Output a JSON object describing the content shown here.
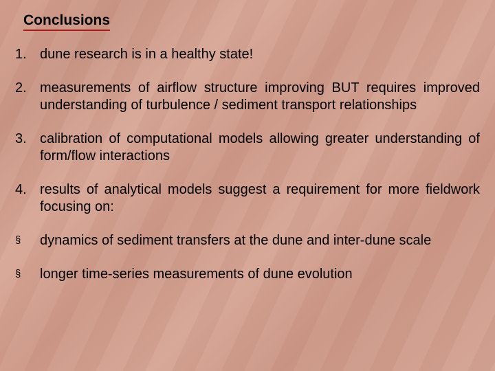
{
  "slide": {
    "heading": "Conclusions",
    "items": [
      {
        "marker": "1.",
        "text": "dune research is in a healthy state!",
        "align": "left"
      },
      {
        "marker": "2.",
        "text": "measurements of airflow structure improving BUT requires improved understanding of turbulence / sediment transport relationships",
        "align": "justify"
      },
      {
        "marker": "3.",
        "text": "calibration of computational models allowing greater understanding of form/flow interactions",
        "align": "justify"
      },
      {
        "marker": "4.",
        "text": "results of analytical models suggest a requirement for more fieldwork focusing on:",
        "align": "justify"
      },
      {
        "marker": "§",
        "text": "dynamics of sediment transfers at the dune and inter-dune scale",
        "align": "justify"
      },
      {
        "marker": "§",
        "text": "longer time-series measurements of dune evolution",
        "align": "left"
      }
    ],
    "colors": {
      "underline": "#b01818",
      "text": "#000000",
      "background_base": "#d4a090"
    },
    "typography": {
      "heading_fontsize": 21,
      "body_fontsize": 20,
      "heading_weight": "bold",
      "font_family": "Arial"
    }
  }
}
